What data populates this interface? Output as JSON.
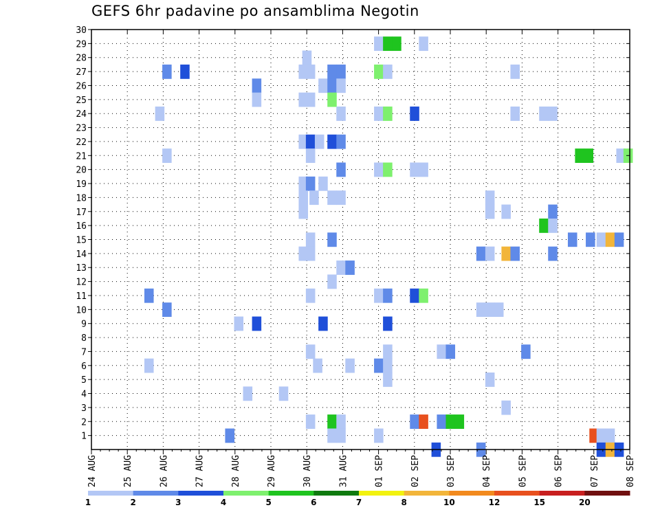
{
  "title": "GEFS 6hr padavine po ansamblima Negotin",
  "chart_data": {
    "type": "heatmap",
    "title": "GEFS 6hr padavine po ansamblima Negotin",
    "x_tick_labels": [
      "24 AUG",
      "25 AUG",
      "26 AUG",
      "27 AUG",
      "28 AUG",
      "29 AUG",
      "30 AUG",
      "31 AUG",
      "01 SEP",
      "02 SEP",
      "03 SEP",
      "04 SEP",
      "05 SEP",
      "06 SEP",
      "07 SEP",
      "08 SEP"
    ],
    "y_tick_labels": [
      "1",
      "2",
      "3",
      "4",
      "5",
      "6",
      "7",
      "8",
      "9",
      "10",
      "11",
      "12",
      "13",
      "14",
      "15",
      "16",
      "17",
      "18",
      "19",
      "20",
      "21",
      "22",
      "23",
      "24",
      "25",
      "26",
      "27",
      "28",
      "29",
      "30"
    ],
    "xlim": [
      0,
      15
    ],
    "ylim": [
      0,
      30
    ],
    "grid": true,
    "colorbar": {
      "levels": [
        "1",
        "2",
        "3",
        "4",
        "5",
        "6",
        "7",
        "8",
        "10",
        "12",
        "15",
        "20"
      ],
      "colors": [
        "#b3c7f5",
        "#5f8ae8",
        "#1f4fd9",
        "#7ef06e",
        "#1fc41f",
        "#0f7a0f",
        "#f2f20f",
        "#f2b53a",
        "#f28a1e",
        "#e8501e",
        "#c81f1f",
        "#701010"
      ]
    },
    "cells": [
      [
        8.0,
        29,
        1
      ],
      [
        8.25,
        29,
        5
      ],
      [
        8.5,
        29,
        5
      ],
      [
        9.25,
        29,
        1
      ],
      [
        6.0,
        28,
        1
      ],
      [
        2.1,
        27,
        2
      ],
      [
        2.6,
        27,
        3
      ],
      [
        5.9,
        27,
        1
      ],
      [
        6.1,
        27,
        1
      ],
      [
        6.7,
        27,
        2
      ],
      [
        6.95,
        27,
        2
      ],
      [
        8.0,
        27,
        4
      ],
      [
        8.25,
        27,
        1
      ],
      [
        11.8,
        27,
        1
      ],
      [
        4.6,
        26,
        2
      ],
      [
        6.45,
        26,
        1
      ],
      [
        6.7,
        26,
        2
      ],
      [
        6.95,
        26,
        1
      ],
      [
        4.6,
        25,
        1
      ],
      [
        5.9,
        25,
        1
      ],
      [
        6.1,
        25,
        1
      ],
      [
        6.7,
        25,
        4
      ],
      [
        1.9,
        24,
        1
      ],
      [
        6.95,
        24,
        1
      ],
      [
        8.0,
        24,
        1
      ],
      [
        8.25,
        24,
        4
      ],
      [
        9.0,
        24,
        3
      ],
      [
        11.8,
        24,
        1
      ],
      [
        12.6,
        24,
        1
      ],
      [
        12.85,
        24,
        1
      ],
      [
        5.9,
        22,
        1
      ],
      [
        6.1,
        22,
        3
      ],
      [
        6.35,
        22,
        1
      ],
      [
        6.7,
        22,
        3
      ],
      [
        6.95,
        22,
        2
      ],
      [
        2.1,
        21,
        1
      ],
      [
        6.1,
        21,
        1
      ],
      [
        13.6,
        21,
        5
      ],
      [
        13.85,
        21,
        5
      ],
      [
        14.75,
        21,
        1
      ],
      [
        14.95,
        21,
        4
      ],
      [
        6.95,
        20,
        2
      ],
      [
        8.0,
        20,
        1
      ],
      [
        8.25,
        20,
        4
      ],
      [
        9.0,
        20,
        1
      ],
      [
        9.25,
        20,
        1
      ],
      [
        5.9,
        19,
        1
      ],
      [
        6.1,
        19,
        2
      ],
      [
        6.45,
        19,
        1
      ],
      [
        5.9,
        18,
        1
      ],
      [
        6.2,
        18,
        1
      ],
      [
        6.7,
        18,
        1
      ],
      [
        6.95,
        18,
        1
      ],
      [
        11.1,
        18,
        1
      ],
      [
        5.9,
        17,
        1
      ],
      [
        11.1,
        17,
        1
      ],
      [
        11.55,
        17,
        1
      ],
      [
        12.85,
        17,
        2
      ],
      [
        12.6,
        16,
        5
      ],
      [
        12.85,
        16,
        1
      ],
      [
        6.1,
        15,
        1
      ],
      [
        6.7,
        15,
        2
      ],
      [
        13.4,
        15,
        2
      ],
      [
        13.9,
        15,
        2
      ],
      [
        14.2,
        15,
        1
      ],
      [
        14.45,
        15,
        8
      ],
      [
        14.7,
        15,
        2
      ],
      [
        5.9,
        14,
        1
      ],
      [
        6.1,
        14,
        1
      ],
      [
        10.85,
        14,
        2
      ],
      [
        11.1,
        14,
        1
      ],
      [
        11.55,
        14,
        8
      ],
      [
        11.8,
        14,
        2
      ],
      [
        12.85,
        14,
        2
      ],
      [
        6.95,
        13,
        1
      ],
      [
        7.2,
        13,
        2
      ],
      [
        6.7,
        12,
        1
      ],
      [
        1.6,
        11,
        2
      ],
      [
        6.1,
        11,
        1
      ],
      [
        8.0,
        11,
        1
      ],
      [
        8.25,
        11,
        2
      ],
      [
        9.0,
        11,
        3
      ],
      [
        9.25,
        11,
        4
      ],
      [
        2.1,
        10,
        2
      ],
      [
        10.85,
        10,
        1
      ],
      [
        11.1,
        10,
        1
      ],
      [
        11.35,
        10,
        1
      ],
      [
        4.1,
        9,
        1
      ],
      [
        4.6,
        9,
        3
      ],
      [
        6.45,
        9,
        3
      ],
      [
        8.25,
        9,
        3
      ],
      [
        6.1,
        7,
        1
      ],
      [
        8.25,
        7,
        1
      ],
      [
        9.75,
        7,
        1
      ],
      [
        10.0,
        7,
        2
      ],
      [
        12.1,
        7,
        2
      ],
      [
        1.6,
        6,
        1
      ],
      [
        6.3,
        6,
        1
      ],
      [
        7.2,
        6,
        1
      ],
      [
        8.0,
        6,
        2
      ],
      [
        8.25,
        6,
        1
      ],
      [
        8.25,
        5,
        1
      ],
      [
        11.1,
        5,
        1
      ],
      [
        4.35,
        4,
        1
      ],
      [
        5.35,
        4,
        1
      ],
      [
        11.55,
        3,
        1
      ],
      [
        6.1,
        2,
        1
      ],
      [
        6.7,
        2,
        5
      ],
      [
        6.95,
        2,
        1
      ],
      [
        9.0,
        2,
        2
      ],
      [
        9.25,
        2,
        10
      ],
      [
        9.75,
        2,
        2
      ],
      [
        10.0,
        2,
        5
      ],
      [
        10.25,
        2,
        5
      ],
      [
        3.85,
        1,
        2
      ],
      [
        6.7,
        1,
        1
      ],
      [
        6.95,
        1,
        1
      ],
      [
        8.0,
        1,
        1
      ],
      [
        14.0,
        1,
        10
      ],
      [
        14.2,
        1,
        1
      ],
      [
        14.45,
        1,
        1
      ],
      [
        9.6,
        0,
        3
      ],
      [
        10.85,
        0,
        2
      ],
      [
        14.2,
        0,
        3
      ],
      [
        14.45,
        0,
        8
      ],
      [
        14.7,
        0,
        3
      ]
    ]
  }
}
